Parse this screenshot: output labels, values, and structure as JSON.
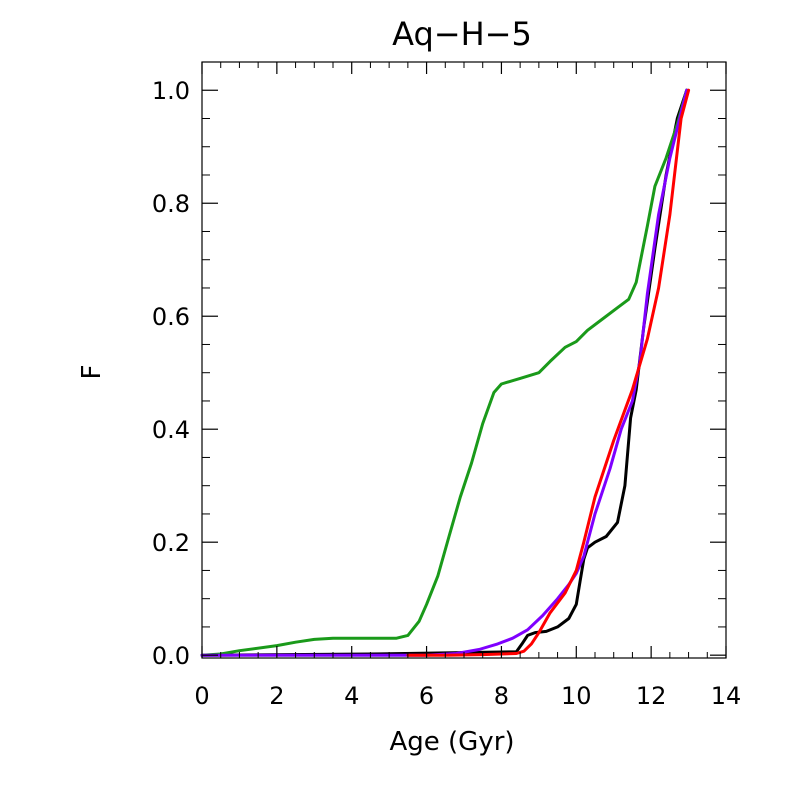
{
  "chart_data": {
    "type": "line",
    "title": "Aq−H−5",
    "xlabel": "Age (Gyr)",
    "ylabel": "F",
    "xlim": [
      0,
      14
    ],
    "ylim": [
      -0.005,
      1.05
    ],
    "x_ticks": [
      0,
      2,
      4,
      6,
      8,
      10,
      12,
      14
    ],
    "x_tick_labels": [
      "0",
      "2",
      "4",
      "6",
      "8",
      "10",
      "12",
      "14"
    ],
    "y_ticks": [
      0.0,
      0.2,
      0.4,
      0.6,
      0.8,
      1.0
    ],
    "y_tick_labels": [
      "0.0",
      "0.2",
      "0.4",
      "0.6",
      "0.8",
      "1.0"
    ],
    "grid": false,
    "series": [
      {
        "name": "black",
        "color": "#000000",
        "points": [
          [
            0,
            0
          ],
          [
            4.5,
            0.002
          ],
          [
            8.4,
            0.006
          ],
          [
            8.55,
            0.02
          ],
          [
            8.7,
            0.035
          ],
          [
            8.9,
            0.04
          ],
          [
            9.2,
            0.042
          ],
          [
            9.5,
            0.05
          ],
          [
            9.8,
            0.065
          ],
          [
            10.0,
            0.09
          ],
          [
            10.1,
            0.13
          ],
          [
            10.2,
            0.17
          ],
          [
            10.3,
            0.19
          ],
          [
            10.5,
            0.2
          ],
          [
            10.8,
            0.21
          ],
          [
            11.1,
            0.235
          ],
          [
            11.3,
            0.3
          ],
          [
            11.45,
            0.42
          ],
          [
            11.6,
            0.47
          ],
          [
            11.8,
            0.58
          ],
          [
            12.1,
            0.72
          ],
          [
            12.4,
            0.85
          ],
          [
            12.7,
            0.95
          ],
          [
            12.95,
            1.0
          ]
        ]
      },
      {
        "name": "green",
        "color": "#1a9a1a",
        "points": [
          [
            0,
            0
          ],
          [
            0.5,
            0.002
          ],
          [
            1.0,
            0.008
          ],
          [
            2.0,
            0.017
          ],
          [
            2.5,
            0.023
          ],
          [
            3.0,
            0.028
          ],
          [
            3.5,
            0.03
          ],
          [
            4.5,
            0.03
          ],
          [
            5.2,
            0.03
          ],
          [
            5.5,
            0.035
          ],
          [
            5.8,
            0.06
          ],
          [
            6.0,
            0.09
          ],
          [
            6.3,
            0.14
          ],
          [
            6.6,
            0.21
          ],
          [
            6.9,
            0.28
          ],
          [
            7.2,
            0.34
          ],
          [
            7.5,
            0.41
          ],
          [
            7.8,
            0.465
          ],
          [
            8.0,
            0.48
          ],
          [
            8.5,
            0.49
          ],
          [
            9.0,
            0.5
          ],
          [
            9.3,
            0.52
          ],
          [
            9.7,
            0.545
          ],
          [
            10.0,
            0.555
          ],
          [
            10.3,
            0.575
          ],
          [
            10.7,
            0.595
          ],
          [
            11.1,
            0.615
          ],
          [
            11.4,
            0.63
          ],
          [
            11.6,
            0.66
          ],
          [
            11.9,
            0.76
          ],
          [
            12.1,
            0.83
          ],
          [
            12.4,
            0.88
          ],
          [
            12.7,
            0.94
          ],
          [
            12.95,
            1.0
          ]
        ]
      },
      {
        "name": "purple",
        "color": "#7f00ff",
        "points": [
          [
            0,
            0
          ],
          [
            5.0,
            0.0
          ],
          [
            6.0,
            0.0
          ],
          [
            6.8,
            0.003
          ],
          [
            7.4,
            0.01
          ],
          [
            7.9,
            0.02
          ],
          [
            8.3,
            0.03
          ],
          [
            8.7,
            0.045
          ],
          [
            9.1,
            0.07
          ],
          [
            9.5,
            0.1
          ],
          [
            9.8,
            0.125
          ],
          [
            10.0,
            0.145
          ],
          [
            10.2,
            0.175
          ],
          [
            10.5,
            0.25
          ],
          [
            10.9,
            0.33
          ],
          [
            11.2,
            0.4
          ],
          [
            11.5,
            0.45
          ],
          [
            11.7,
            0.52
          ],
          [
            11.9,
            0.64
          ],
          [
            12.2,
            0.78
          ],
          [
            12.5,
            0.88
          ],
          [
            12.8,
            0.96
          ],
          [
            12.95,
            1.0
          ]
        ]
      },
      {
        "name": "red",
        "color": "#ff0000",
        "points": [
          [
            5.5,
            0.0
          ],
          [
            6.5,
            0.0
          ],
          [
            7.5,
            0.001
          ],
          [
            8.4,
            0.003
          ],
          [
            8.6,
            0.007
          ],
          [
            8.8,
            0.02
          ],
          [
            9.0,
            0.04
          ],
          [
            9.3,
            0.075
          ],
          [
            9.7,
            0.11
          ],
          [
            10.0,
            0.15
          ],
          [
            10.2,
            0.2
          ],
          [
            10.5,
            0.28
          ],
          [
            11.0,
            0.38
          ],
          [
            11.5,
            0.47
          ],
          [
            11.9,
            0.56
          ],
          [
            12.2,
            0.65
          ],
          [
            12.5,
            0.78
          ],
          [
            12.8,
            0.95
          ],
          [
            13.0,
            1.0
          ]
        ]
      }
    ]
  }
}
